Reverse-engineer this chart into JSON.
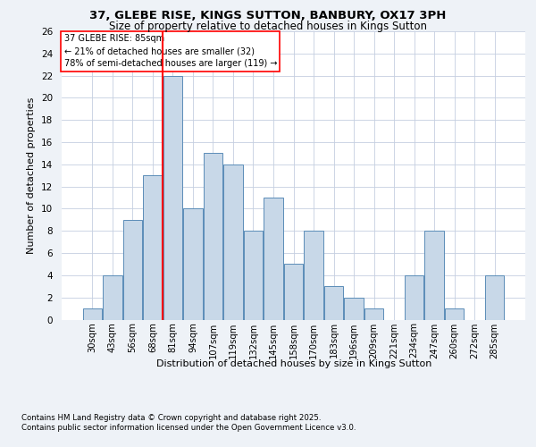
{
  "title_line1": "37, GLEBE RISE, KINGS SUTTON, BANBURY, OX17 3PH",
  "title_line2": "Size of property relative to detached houses in Kings Sutton",
  "xlabel": "Distribution of detached houses by size in Kings Sutton",
  "ylabel": "Number of detached properties",
  "categories": [
    "30sqm",
    "43sqm",
    "56sqm",
    "68sqm",
    "81sqm",
    "94sqm",
    "107sqm",
    "119sqm",
    "132sqm",
    "145sqm",
    "158sqm",
    "170sqm",
    "183sqm",
    "196sqm",
    "209sqm",
    "221sqm",
    "234sqm",
    "247sqm",
    "260sqm",
    "272sqm",
    "285sqm"
  ],
  "values": [
    1,
    4,
    9,
    13,
    22,
    10,
    15,
    14,
    8,
    11,
    5,
    8,
    3,
    2,
    1,
    0,
    4,
    8,
    1,
    0,
    4
  ],
  "bar_color": "#c8d8e8",
  "bar_edge_color": "#5b8db8",
  "highlight_index": 4,
  "ylim": [
    0,
    26
  ],
  "yticks": [
    0,
    2,
    4,
    6,
    8,
    10,
    12,
    14,
    16,
    18,
    20,
    22,
    24,
    26
  ],
  "annotation_title": "37 GLEBE RISE: 85sqm",
  "annotation_line1": "← 21% of detached houses are smaller (32)",
  "annotation_line2": "78% of semi-detached houses are larger (119) →",
  "footnote1": "Contains HM Land Registry data © Crown copyright and database right 2025.",
  "footnote2": "Contains public sector information licensed under the Open Government Licence v3.0.",
  "bg_color": "#eef2f7",
  "plot_bg_color": "#ffffff"
}
